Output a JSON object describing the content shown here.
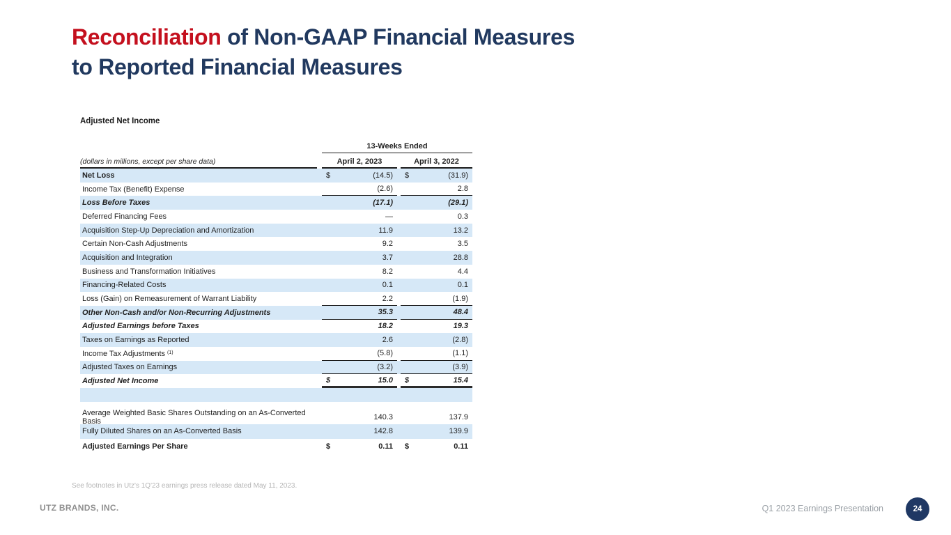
{
  "slide": {
    "title": {
      "highlight": "Reconciliation",
      "rest_line1": " of Non-GAAP Financial Measures",
      "line2": "to Reported Financial Measures"
    },
    "footnote": "See footnotes in Utz's 1Q'23 earnings press release dated May 11, 2023.",
    "footer": {
      "company": "UTZ BRANDS, INC.",
      "presentation": "Q1 2023 Earnings Presentation",
      "page_number": "24"
    },
    "colors": {
      "title_red": "#c4101e",
      "title_navy": "#21395f",
      "row_highlight_blue": "#d6e8f7",
      "page_circle_navy": "#1f3864"
    }
  },
  "table": {
    "section_title": "Adjusted Net Income",
    "header": {
      "span_label": "13-Weeks Ended",
      "row_label": "(dollars in millions, except per share data)",
      "col1": "April 2, 2023",
      "col2": "April 3, 2022"
    },
    "rows": [
      {
        "label": "Net Loss",
        "dollar": true,
        "v1": "(14.5)",
        "v2": "(31.9)",
        "shaded": true,
        "labelStyle": "bold"
      },
      {
        "label": "Income Tax (Benefit) Expense",
        "v1": "(2.6)",
        "v2": "2.8",
        "rule": "single"
      },
      {
        "label": "Loss Before Taxes",
        "v1": "(17.1)",
        "v2": "(29.1)",
        "shaded": true,
        "style": "bolditalic"
      },
      {
        "label": "Deferred Financing Fees",
        "v1": "—",
        "v2": "0.3"
      },
      {
        "label": "Acquisition Step-Up Depreciation and Amortization",
        "v1": "11.9",
        "v2": "13.2",
        "shaded": true
      },
      {
        "label": "Certain Non-Cash Adjustments",
        "v1": "9.2",
        "v2": "3.5"
      },
      {
        "label": "Acquisition and Integration",
        "v1": "3.7",
        "v2": "28.8",
        "shaded": true
      },
      {
        "label": "Business and Transformation Initiatives",
        "v1": "8.2",
        "v2": "4.4"
      },
      {
        "label": "Financing-Related Costs",
        "v1": "0.1",
        "v2": "0.1",
        "shaded": true
      },
      {
        "label": "Loss (Gain) on Remeasurement of Warrant Liability",
        "v1": "2.2",
        "v2": "(1.9)",
        "rule": "single"
      },
      {
        "label": "Other Non-Cash and/or Non-Recurring Adjustments",
        "v1": "35.3",
        "v2": "48.4",
        "shaded": true,
        "style": "bolditalic",
        "rule": "single"
      },
      {
        "label": "Adjusted Earnings before Taxes",
        "v1": "18.2",
        "v2": "19.3",
        "style": "bolditalic"
      },
      {
        "label": "Taxes on Earnings as Reported",
        "v1": "2.6",
        "v2": "(2.8)",
        "shaded": true
      },
      {
        "label": "Income Tax Adjustments",
        "sup": "(1)",
        "v1": "(5.8)",
        "v2": "(1.1)",
        "rule": "single"
      },
      {
        "label": "Adjusted Taxes on Earnings",
        "v1": "(3.2)",
        "v2": "(3.9)",
        "shaded": true,
        "rule": "single"
      },
      {
        "label": "Adjusted Net Income",
        "dollar": true,
        "v1": "15.0",
        "v2": "15.4",
        "style": "bolditalic",
        "rule": "thick"
      },
      {
        "label": "",
        "v1": "",
        "v2": "",
        "shaded": true,
        "spacer": true
      }
    ],
    "shares_rows": [
      {
        "label": "Average Weighted Basic Shares Outstanding on an As-Converted Basis",
        "v1": "140.3",
        "v2": "137.9"
      },
      {
        "label": "Fully Diluted Shares on an As-Converted Basis",
        "v1": "142.8",
        "v2": "139.9",
        "shaded": true
      },
      {
        "label": "Adjusted Earnings Per Share",
        "dollar": true,
        "v1": "0.11",
        "v2": "0.11",
        "style": "bold"
      }
    ]
  }
}
